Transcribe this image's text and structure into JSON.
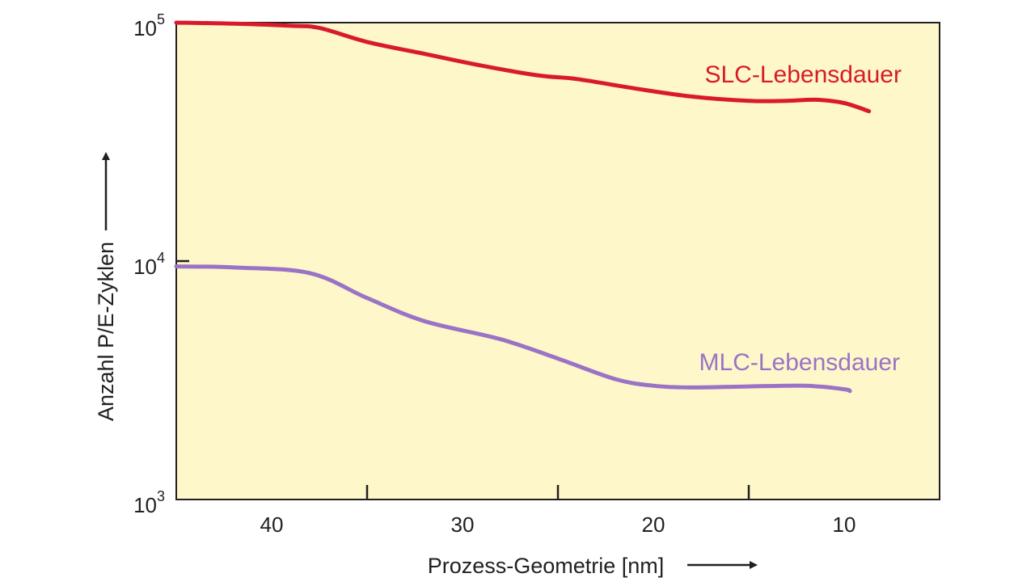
{
  "chart_data": {
    "type": "line",
    "xlabel": "Prozess-Geometrie [nm]",
    "ylabel": "Anzahl P/E-Zyklen",
    "x_ticks": [
      40,
      30,
      20,
      10
    ],
    "x_minor_ticks": [
      35,
      25,
      15
    ],
    "xlim": [
      45,
      5
    ],
    "y_scale": "log",
    "ylim": [
      1000,
      100000
    ],
    "y_ticks": [
      {
        "value": 1000,
        "base": "10",
        "exp": "3"
      },
      {
        "value": 10000,
        "base": "10",
        "exp": "4"
      },
      {
        "value": 100000,
        "base": "10",
        "exp": "5"
      }
    ],
    "grid": false,
    "background_color": "#fdf7c9",
    "series": [
      {
        "name": "SLC-Lebensdauer",
        "color": "#d91a2a",
        "x": [
          45,
          42,
          39,
          37.5,
          35,
          32,
          29,
          26,
          24,
          21,
          18,
          15,
          13,
          11.5,
          10,
          8.7
        ],
        "y": [
          100000,
          99000,
          97000,
          95000,
          83000,
          74000,
          66000,
          60000,
          58000,
          53000,
          49000,
          47000,
          47000,
          47500,
          46000,
          42500
        ]
      },
      {
        "name": "MLC-Lebensdauer",
        "color": "#9a73c6",
        "x": [
          45,
          42,
          38,
          35,
          32,
          28,
          25,
          22,
          20,
          18,
          15,
          12,
          10,
          9.7
        ],
        "y": [
          9500,
          9400,
          8900,
          7000,
          5600,
          4700,
          3900,
          3200,
          3000,
          2950,
          2980,
          3000,
          2900,
          2850
        ]
      }
    ]
  }
}
